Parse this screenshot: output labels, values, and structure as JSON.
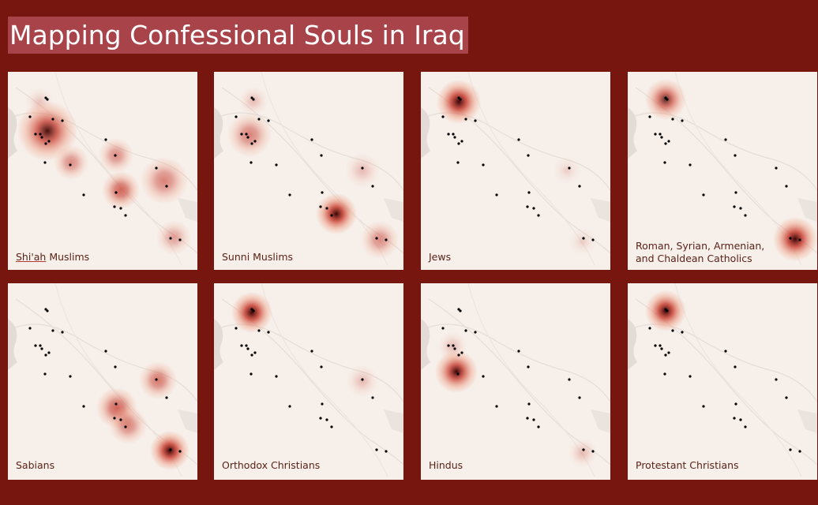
{
  "page": {
    "title": "Mapping Confessional Souls in Iraq"
  },
  "colors": {
    "background": "#77160f",
    "title_bg": "#a9434a",
    "map_bg": "#f6efea",
    "heat_core": "#3a0505",
    "heat_mid": "#c6382a",
    "heat_outer": "#f0a287",
    "city_dot": "#000000"
  },
  "panels": [
    {
      "label_lines": [
        "Shi'ah Muslims"
      ],
      "underline_first_word": true
    },
    {
      "label_lines": [
        "Sunni Muslims"
      ]
    },
    {
      "label_lines": [
        "Jews"
      ]
    },
    {
      "label_lines": [
        "Roman, Syrian, Armenian,",
        "and Chaldean Catholics"
      ]
    },
    {
      "label_lines": [
        "Sabians"
      ]
    },
    {
      "label_lines": [
        "Orthodox Christians"
      ]
    },
    {
      "label_lines": [
        "Hindus"
      ]
    },
    {
      "label_lines": [
        "Protestant Christians"
      ]
    }
  ]
}
